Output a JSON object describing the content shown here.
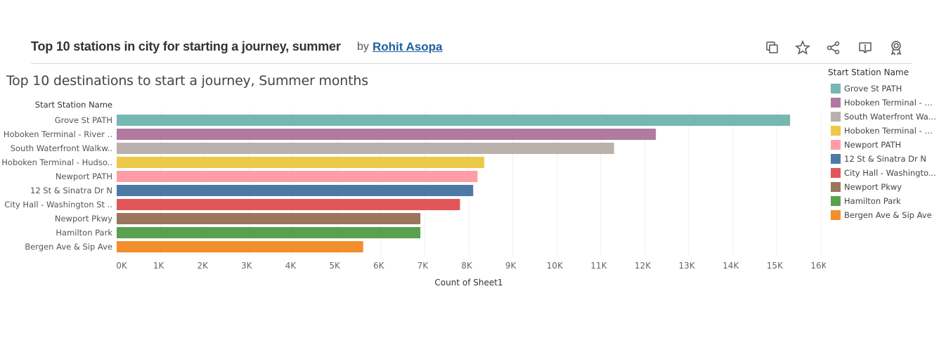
{
  "header": {
    "title": "Top 10 stations in city for starting a journey, summer",
    "by": "by",
    "author": "Rohit Asopa"
  },
  "toolbar": {
    "icons": [
      "copy-icon",
      "star-icon",
      "share-icon",
      "download-icon",
      "award-icon"
    ]
  },
  "sheet_title": "Top 10 destinations to start a journey, Summer months",
  "legend": {
    "title": "Start Station Name",
    "items": [
      {
        "label": "Grove St PATH",
        "color": "#76b7b2"
      },
      {
        "label": "Hoboken Terminal - Ri...",
        "color": "#b07aa1"
      },
      {
        "label": "South Waterfront Wa...",
        "color": "#bab0ac"
      },
      {
        "label": "Hoboken Terminal - H...",
        "color": "#edc948"
      },
      {
        "label": "Newport PATH",
        "color": "#ff9da7"
      },
      {
        "label": "12 St & Sinatra Dr N",
        "color": "#4e79a7"
      },
      {
        "label": "City Hall - Washingto...",
        "color": "#e15759"
      },
      {
        "label": "Newport Pkwy",
        "color": "#9c755f"
      },
      {
        "label": "Hamilton Park",
        "color": "#59a14f"
      },
      {
        "label": "Bergen Ave & Sip Ave",
        "color": "#f28e2b"
      }
    ]
  },
  "chart_data": {
    "type": "bar",
    "orientation": "horizontal",
    "row_header": "Start Station Name",
    "xlabel": "Count of Sheet1",
    "xlim": [
      0,
      16000
    ],
    "xticks": [
      0,
      1000,
      2000,
      3000,
      4000,
      5000,
      6000,
      7000,
      8000,
      9000,
      10000,
      11000,
      12000,
      13000,
      14000,
      15000,
      16000
    ],
    "xtick_labels": [
      "0K",
      "1K",
      "2K",
      "3K",
      "4K",
      "5K",
      "6K",
      "7K",
      "8K",
      "9K",
      "10K",
      "11K",
      "12K",
      "13K",
      "14K",
      "15K",
      "16K"
    ],
    "grid": "vertical",
    "legend_position": "right",
    "categories": [
      "Grove St PATH",
      "Hoboken Terminal - River ..",
      "South Waterfront Walkw..",
      "Hoboken Terminal - Hudso..",
      "Newport PATH",
      "12 St & Sinatra Dr N",
      "City Hall - Washington St ..",
      "Newport Pkwy",
      "Hamilton Park",
      "Bergen Ave & Sip Ave"
    ],
    "values": [
      15300,
      12250,
      11300,
      8350,
      8200,
      8100,
      7800,
      6900,
      6900,
      5600
    ],
    "colors": [
      "#76b7b2",
      "#b07aa1",
      "#bab0ac",
      "#edc948",
      "#ff9da7",
      "#4e79a7",
      "#e15759",
      "#9c755f",
      "#59a14f",
      "#f28e2b"
    ]
  }
}
